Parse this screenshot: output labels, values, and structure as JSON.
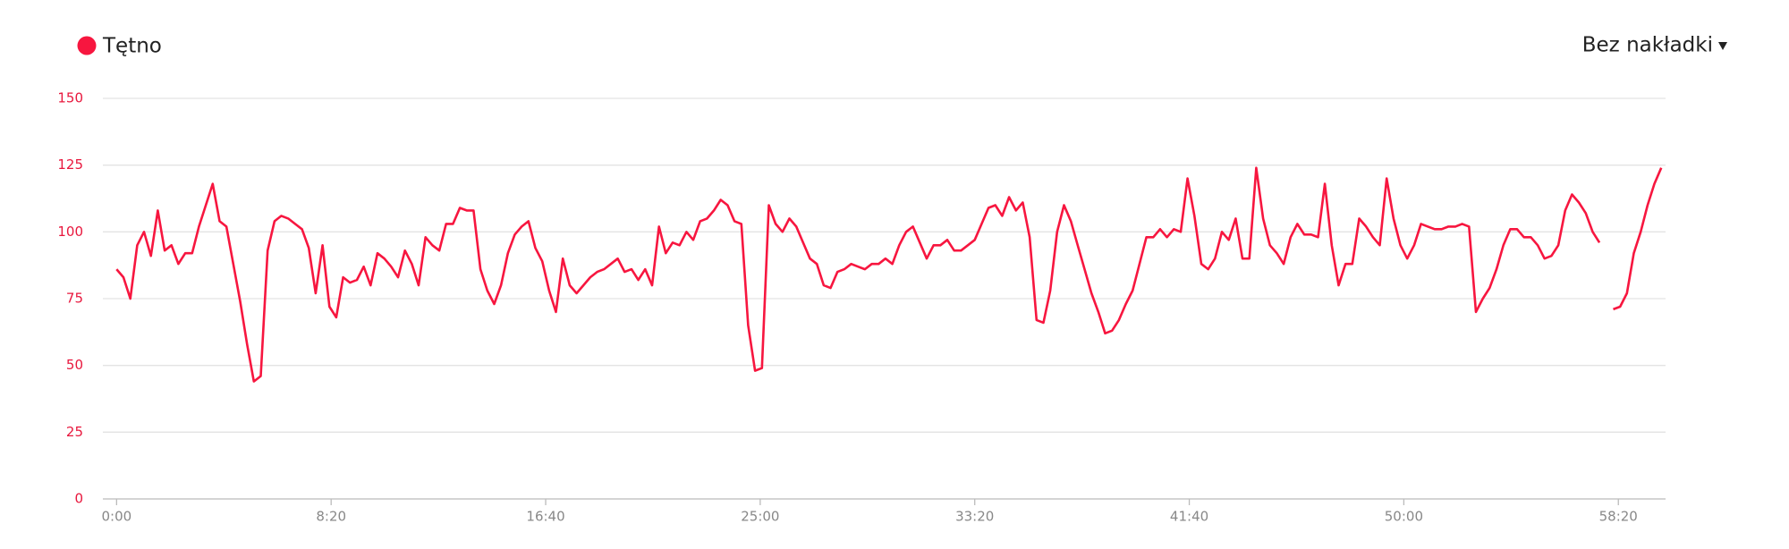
{
  "chart_data": {
    "type": "line",
    "legend": "Tętno",
    "overlay_menu": "Bez nakładki",
    "series": [
      {
        "name": "Tętno",
        "color": "#f7163f",
        "x": [
          0,
          16,
          32,
          48,
          64,
          80,
          96,
          112,
          128,
          144,
          160,
          176,
          192,
          208,
          224,
          240,
          256,
          272,
          288,
          304,
          320,
          336,
          352,
          368,
          384,
          400,
          416,
          432,
          448,
          464,
          480,
          496,
          512,
          528,
          544,
          560,
          576,
          592,
          608,
          624,
          640,
          656,
          672,
          688,
          704,
          720,
          736,
          752,
          768,
          784,
          800,
          816,
          832,
          848,
          864,
          880,
          896,
          912,
          928,
          944,
          960,
          976,
          992,
          1008,
          1024,
          1040,
          1056,
          1072,
          1088,
          1104,
          1120,
          1136,
          1152,
          1168,
          1184,
          1200,
          1216,
          1232,
          1248,
          1264,
          1280,
          1296,
          1312,
          1328,
          1344,
          1360,
          1376,
          1392,
          1408,
          1424,
          1440,
          1456,
          1472,
          1488,
          1504,
          1520,
          1536,
          1552,
          1568,
          1584,
          1600,
          1616,
          1632,
          1648,
          1664,
          1680,
          1696,
          1712,
          1728,
          1744,
          1760,
          1776,
          1792,
          1808,
          1824,
          1840,
          1856,
          1872,
          1888,
          1904,
          1920,
          1936,
          1952,
          1968,
          1984,
          2000,
          2016,
          2032,
          2048,
          2064,
          2080,
          2096,
          2112,
          2128,
          2144,
          2160,
          2176,
          2192,
          2208,
          2224,
          2240,
          2256,
          2272,
          2288,
          2304,
          2320,
          2336,
          2352,
          2368,
          2384,
          2400,
          2416,
          2432,
          2448,
          2464,
          2480,
          2496,
          2512,
          2528,
          2544,
          2560,
          2576,
          2592,
          2608,
          2624,
          2640,
          2656,
          2672,
          2688,
          2704,
          2720,
          2736,
          2752,
          2768,
          2784,
          2800,
          2816,
          2832,
          2848,
          2864,
          2880,
          2896,
          2912,
          2928,
          2944,
          2960,
          2976,
          2992,
          3008,
          3024,
          3040,
          3056,
          3072,
          3088,
          3104,
          3120,
          3136,
          3152,
          3168,
          3184,
          3200,
          3216,
          3232,
          3248,
          3264,
          3280,
          3296,
          3312,
          3328,
          3344,
          3360,
          3376,
          3392,
          3408,
          3424,
          3440,
          3456,
          3472,
          3488,
          3504,
          3520,
          3536,
          3552,
          3568,
          3584,
          3600
        ],
        "values": [
          86,
          83,
          75,
          95,
          100,
          91,
          108,
          93,
          95,
          88,
          92,
          92,
          102,
          110,
          118,
          104,
          102,
          88,
          74,
          58,
          44,
          46,
          93,
          104,
          106,
          105,
          103,
          101,
          94,
          77,
          95,
          72,
          68,
          83,
          81,
          82,
          87,
          80,
          92,
          90,
          87,
          83,
          93,
          88,
          80,
          98,
          95,
          93,
          103,
          103,
          109,
          108,
          108,
          86,
          78,
          73,
          80,
          92,
          99,
          102,
          104,
          94,
          89,
          78,
          70,
          90,
          80,
          77,
          80,
          83,
          85,
          86,
          88,
          90,
          85,
          86,
          82,
          86,
          80,
          102,
          92,
          96,
          95,
          100,
          97,
          104,
          105,
          108,
          112,
          110,
          104,
          103,
          65,
          48,
          49,
          110,
          103,
          100,
          105,
          102,
          96,
          90,
          88,
          80,
          79,
          85,
          86,
          88,
          87,
          86,
          88,
          88,
          90,
          88,
          95,
          100,
          102,
          96,
          90,
          95,
          95,
          97,
          93,
          93,
          95,
          97,
          103,
          109,
          110,
          106,
          113,
          108,
          111,
          98,
          67,
          66,
          78,
          100,
          110,
          104,
          95,
          86,
          77,
          70,
          62,
          63,
          67,
          73,
          78,
          88,
          98,
          98,
          101,
          98,
          101,
          100,
          120,
          106,
          88,
          86,
          90,
          100,
          97,
          105,
          90,
          90,
          124,
          105,
          95,
          92,
          88,
          98,
          103,
          99,
          99,
          98,
          118,
          95,
          80,
          88,
          88,
          105,
          102,
          98,
          95,
          120,
          105,
          95,
          90,
          95,
          103,
          102,
          101,
          101,
          102,
          102,
          103,
          102,
          70,
          75,
          79,
          86,
          95,
          101,
          101,
          98,
          98,
          95,
          90,
          91,
          95,
          108,
          114,
          111,
          107,
          100,
          96,
          null,
          71,
          72,
          77,
          92,
          100,
          110,
          118,
          124
        ]
      }
    ],
    "xlim": [
      -32,
      3610
    ],
    "xticks": [
      {
        "value": 0,
        "label": "0:00"
      },
      {
        "value": 500,
        "label": "8:20"
      },
      {
        "value": 1000,
        "label": "16:40"
      },
      {
        "value": 1500,
        "label": "25:00"
      },
      {
        "value": 2000,
        "label": "33:20"
      },
      {
        "value": 2500,
        "label": "41:40"
      },
      {
        "value": 3000,
        "label": "50:00"
      },
      {
        "value": 3500,
        "label": "58:20"
      }
    ],
    "ylim": [
      0,
      150
    ],
    "yticks": [
      0,
      25,
      50,
      75,
      100,
      125,
      150
    ],
    "grid": true
  }
}
